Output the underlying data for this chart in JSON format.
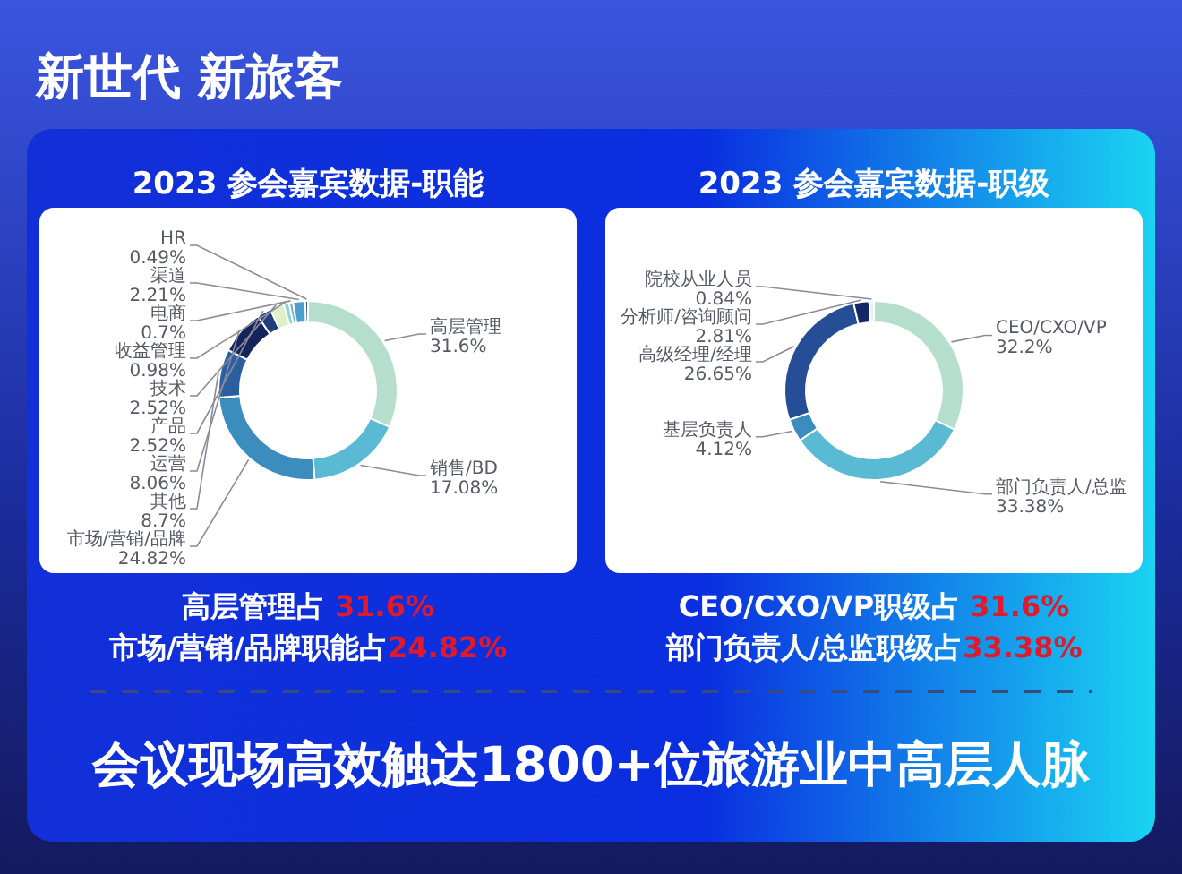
{
  "chart_data": [
    {
      "type": "donut",
      "title": "2023 参会嘉宾数据-职能",
      "categories": [
        "高层管理",
        "销售/BD",
        "市场/营销/品牌",
        "其他",
        "运营",
        "产品",
        "技术",
        "收益管理",
        "电商",
        "渠道",
        "HR"
      ],
      "values": [
        31.6,
        17.08,
        24.82,
        8.7,
        8.06,
        2.52,
        2.52,
        0.98,
        0.7,
        2.21,
        0.49
      ],
      "colors": [
        "#b5dfcc",
        "#5bbad3",
        "#3a8dbd",
        "#2a5fa0",
        "#14255e",
        "#1e3f7e",
        "#dff0c8",
        "#8fd3d8",
        "#6fa8d0",
        "#4a9fd0",
        "#2050a0"
      ],
      "value_labels": [
        "31.6%",
        "17.08%",
        "24.82%",
        "8.7%",
        "8.06%",
        "2.52%",
        "2.52%",
        "0.98%",
        "0.7%",
        "2.21%",
        "0.49%"
      ],
      "annotations": [
        "高层管理占 31.6%",
        "市场/营销/品牌职能占24.82%"
      ]
    },
    {
      "type": "donut",
      "title": "2023 参会嘉宾数据-职级",
      "categories": [
        "CEO/CXO/VP",
        "部门负责人/总监",
        "基层负责人",
        "高级经理/经理",
        "分析师/咨询顾问",
        "院校从业人员"
      ],
      "values": [
        32.2,
        33.38,
        4.12,
        26.65,
        2.81,
        0.84
      ],
      "colors": [
        "#b5dfcc",
        "#5bbad3",
        "#3a8dbd",
        "#254e96",
        "#142766",
        "#e8f4ea"
      ],
      "value_labels": [
        "32.2%",
        "33.38%",
        "4.12%",
        "26.65%",
        "2.81%",
        "0.84%"
      ],
      "annotations": [
        "CEO/CXO/VP职级占 31.6%",
        "部门负责人/总监职级占33.38%"
      ]
    },
    {
      "type": "other",
      "title": "新世代 新旅客",
      "annotations": [
        "会议现场高效触达1800+位旅游业中高层人脉"
      ]
    }
  ]
}
